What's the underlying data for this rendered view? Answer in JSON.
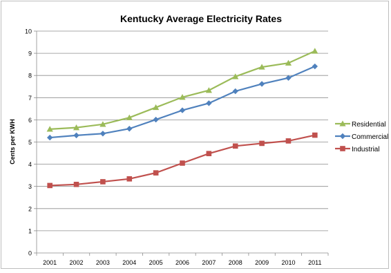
{
  "chart_data": {
    "type": "line",
    "title": "Kentucky Average Electricity Rates",
    "xlabel": "",
    "ylabel": "Cents per KWH",
    "x": [
      "2001",
      "2002",
      "2003",
      "2004",
      "2005",
      "2006",
      "2007",
      "2008",
      "2009",
      "2010",
      "2011"
    ],
    "ylim": [
      0,
      10
    ],
    "yticks": [
      "0",
      "1",
      "2",
      "3",
      "4",
      "5",
      "6",
      "7",
      "8",
      "9",
      "10"
    ],
    "grid": true,
    "legend_position": "right",
    "series": [
      {
        "name": "Residential",
        "color": "#9bbb59",
        "marker": "triangle",
        "values": [
          5.58,
          5.65,
          5.8,
          6.1,
          6.56,
          7.02,
          7.33,
          7.95,
          8.38,
          8.56,
          9.1
        ]
      },
      {
        "name": "Commercial",
        "color": "#4f81bd",
        "marker": "diamond",
        "values": [
          5.2,
          5.3,
          5.38,
          5.6,
          6.01,
          6.43,
          6.75,
          7.29,
          7.62,
          7.89,
          8.41
        ]
      },
      {
        "name": "Industrial",
        "color": "#c0504d",
        "marker": "square",
        "values": [
          3.04,
          3.09,
          3.21,
          3.34,
          3.61,
          4.05,
          4.48,
          4.82,
          4.94,
          5.05,
          5.31
        ]
      }
    ]
  }
}
